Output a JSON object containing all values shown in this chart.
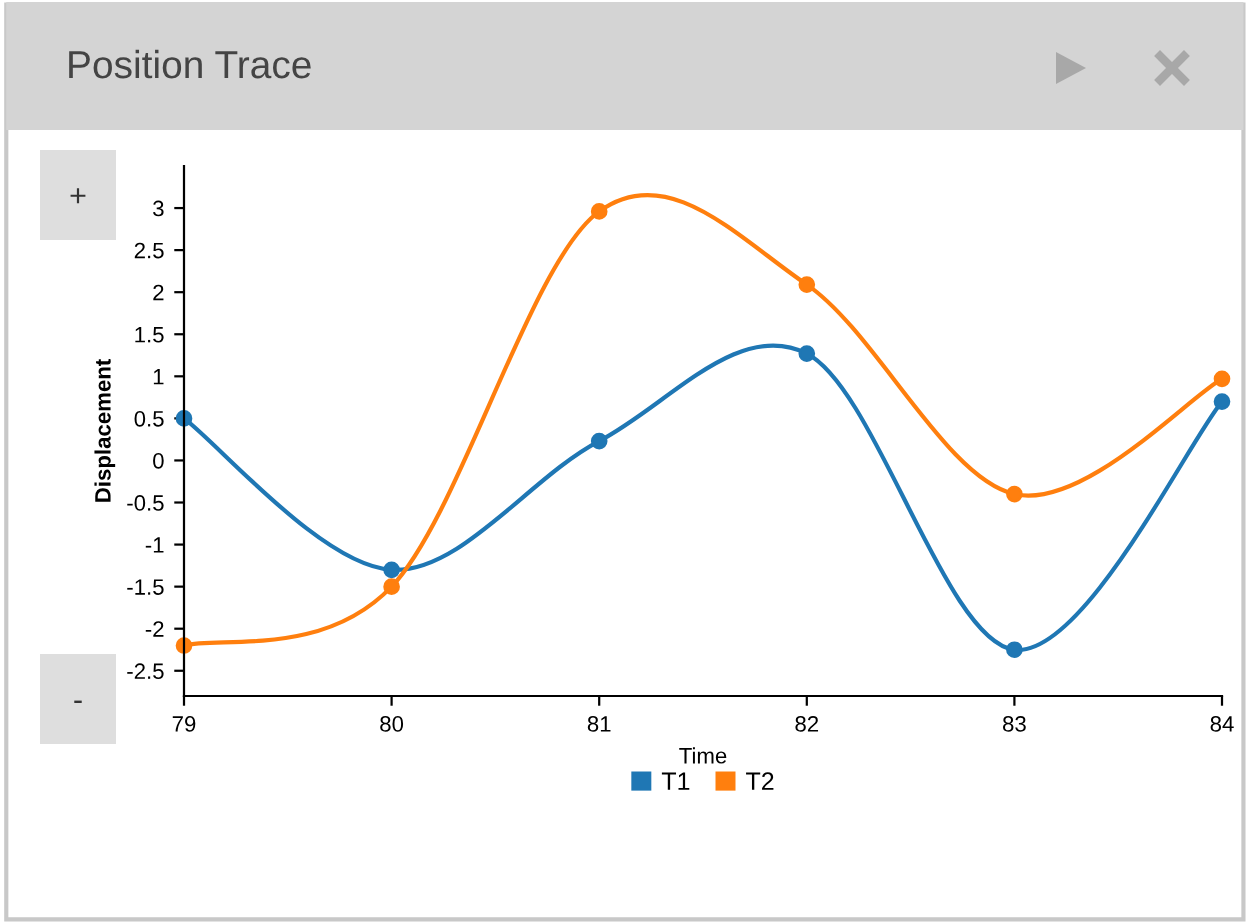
{
  "chart_data": {
    "type": "line",
    "title": "Position Trace",
    "xlabel": "Time",
    "ylabel": "Displacement",
    "x": [
      79,
      80,
      81,
      82,
      83,
      84
    ],
    "series": [
      {
        "name": "T1",
        "color": "#1f77b4",
        "values": [
          0.5,
          -1.3,
          0.23,
          1.27,
          -2.25,
          0.7
        ]
      },
      {
        "name": "T2",
        "color": "#ff7f0e",
        "values": [
          -2.2,
          -1.5,
          2.96,
          2.09,
          -0.4,
          0.97
        ]
      }
    ],
    "xlim": [
      79,
      84
    ],
    "xticks": [
      79,
      80,
      81,
      82,
      83,
      84
    ],
    "ylim": [
      -2.8,
      3.5
    ],
    "yticks": [
      -2.5,
      -2,
      -1.5,
      -1,
      -0.5,
      0,
      0.5,
      1,
      1.5,
      2,
      2.5,
      3
    ],
    "grid": false,
    "legend": "bottom",
    "marker": "circle",
    "line_style": "solid",
    "annotations": [
      "+",
      "-"
    ]
  }
}
